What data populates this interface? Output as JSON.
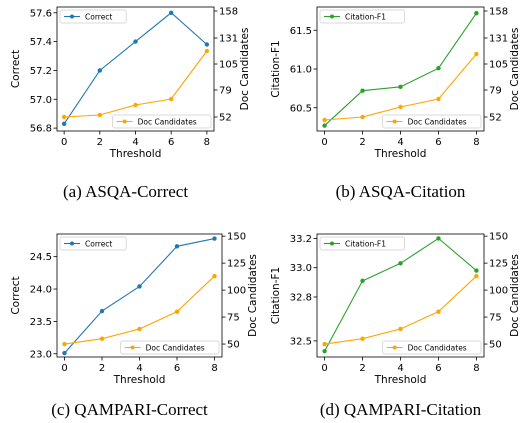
{
  "colors": {
    "correct": "#1f77b4",
    "citation": "#2ca02c",
    "doc": "#ffa500"
  },
  "chart_data": [
    {
      "type": "line",
      "caption": "(a)  ASQA-Correct",
      "x": [
        0,
        2,
        4,
        6,
        8
      ],
      "xlabel": "Threshold",
      "ylabel": "Correct",
      "y2label": "Doc Candidates",
      "ylim": [
        56.78,
        57.64
      ],
      "y2lim": [
        38,
        162
      ],
      "yticks": [
        "56.8",
        "57.0",
        "57.2",
        "57.4",
        "57.6"
      ],
      "y2ticks": [
        "52",
        "79",
        "105",
        "131",
        "158"
      ],
      "series": [
        {
          "name": "Correct",
          "axis": "left",
          "color": "correct",
          "legend": "top-left",
          "values": [
            56.83,
            57.2,
            57.4,
            57.6,
            57.38
          ]
        },
        {
          "name": "Doc Candidates",
          "axis": "right",
          "color": "doc",
          "legend": "bottom-right",
          "values": [
            52,
            54,
            64,
            70,
            118
          ]
        }
      ]
    },
    {
      "type": "line",
      "caption": "(b)  ASQA-Citation",
      "x": [
        0,
        2,
        4,
        6,
        8
      ],
      "xlabel": "Threshold",
      "ylabel": "Citation-F1",
      "y2label": "Doc Candidates",
      "ylim": [
        60.2,
        61.8
      ],
      "y2lim": [
        38,
        162
      ],
      "yticks": [
        "60.5",
        "61.0",
        "61.5"
      ],
      "y2ticks": [
        "52",
        "79",
        "105",
        "131",
        "158"
      ],
      "series": [
        {
          "name": "Citation-F1",
          "axis": "left",
          "color": "citation",
          "legend": "top-left",
          "values": [
            60.27,
            60.72,
            60.77,
            61.01,
            61.72
          ]
        },
        {
          "name": "Doc Candidates",
          "axis": "right",
          "color": "doc",
          "legend": "bottom-right",
          "values": [
            49,
            52,
            62,
            70,
            115
          ]
        }
      ]
    },
    {
      "type": "line",
      "caption": "(c)  QAMPARI-Correct",
      "x": [
        0,
        2,
        4,
        6,
        8
      ],
      "xlabel": "Threshold",
      "ylabel": "Correct",
      "y2label": "Doc Candidates",
      "ylim": [
        22.95,
        24.85
      ],
      "y2lim": [
        38,
        152
      ],
      "yticks": [
        "23.0",
        "23.5",
        "24.0",
        "24.5"
      ],
      "y2ticks": [
        "50",
        "75",
        "100",
        "125",
        "150"
      ],
      "series": [
        {
          "name": "Correct",
          "axis": "left",
          "color": "correct",
          "legend": "top-left",
          "values": [
            23.01,
            23.66,
            24.04,
            24.66,
            24.78
          ]
        },
        {
          "name": "Doc Candidates",
          "axis": "right",
          "color": "doc",
          "legend": "bottom-right",
          "values": [
            50,
            55,
            64,
            80,
            113
          ]
        }
      ]
    },
    {
      "type": "line",
      "caption": "(d)  QAMPARI-Citation",
      "x": [
        0,
        2,
        4,
        6,
        8
      ],
      "xlabel": "Threshold",
      "ylabel": "Citation-F1",
      "y2label": "Doc Candidates",
      "ylim": [
        32.39,
        33.23
      ],
      "y2lim": [
        38,
        152
      ],
      "yticks": [
        "32.5",
        "32.8",
        "33.0",
        "33.2"
      ],
      "y2ticks": [
        "50",
        "75",
        "100",
        "125",
        "150"
      ],
      "series": [
        {
          "name": "Citation-F1",
          "axis": "left",
          "color": "citation",
          "legend": "top-left",
          "values": [
            32.43,
            32.91,
            33.03,
            33.2,
            32.98
          ]
        },
        {
          "name": "Doc Candidates",
          "axis": "right",
          "color": "doc",
          "legend": "bottom-right",
          "values": [
            50,
            55,
            64,
            80,
            113
          ]
        }
      ]
    }
  ]
}
